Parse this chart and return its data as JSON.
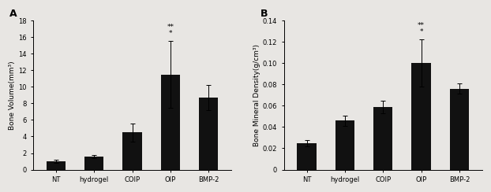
{
  "panel_A": {
    "label": "A",
    "categories": [
      "NT",
      "hydrogel",
      "COIP",
      "OIP",
      "BMP-2"
    ],
    "values": [
      1.0,
      1.6,
      4.5,
      11.5,
      8.7
    ],
    "errors": [
      0.15,
      0.2,
      1.1,
      4.0,
      1.5
    ],
    "ylabel": "Bone Volume(mm³)",
    "ylim": [
      0,
      18
    ],
    "yticks": [
      0,
      2,
      4,
      6,
      8,
      10,
      12,
      14,
      16,
      18
    ],
    "significance": {
      "bar_index": 3,
      "text1": "**",
      "text2": "*"
    }
  },
  "panel_B": {
    "label": "B",
    "categories": [
      "NT",
      "hydrogel",
      "COIP",
      "OIP",
      "BMP-2"
    ],
    "values": [
      0.025,
      0.046,
      0.059,
      0.1,
      0.076
    ],
    "errors": [
      0.003,
      0.005,
      0.006,
      0.022,
      0.005
    ],
    "ylabel": "Bone Mineral Density(g/cm³)",
    "ylim": [
      0,
      0.14
    ],
    "yticks": [
      0,
      0.02,
      0.04,
      0.06,
      0.08,
      0.1,
      0.12,
      0.14
    ],
    "significance": {
      "bar_index": 3,
      "text1": "**",
      "text2": "*"
    }
  },
  "bar_color": "#111111",
  "bar_width": 0.5,
  "capsize": 2,
  "background_color": "#e8e6e3",
  "axes_background": "#e8e6e3",
  "label_fontsize": 6.5,
  "tick_fontsize": 6,
  "sig_fontsize": 6.5,
  "panel_label_fontsize": 9
}
